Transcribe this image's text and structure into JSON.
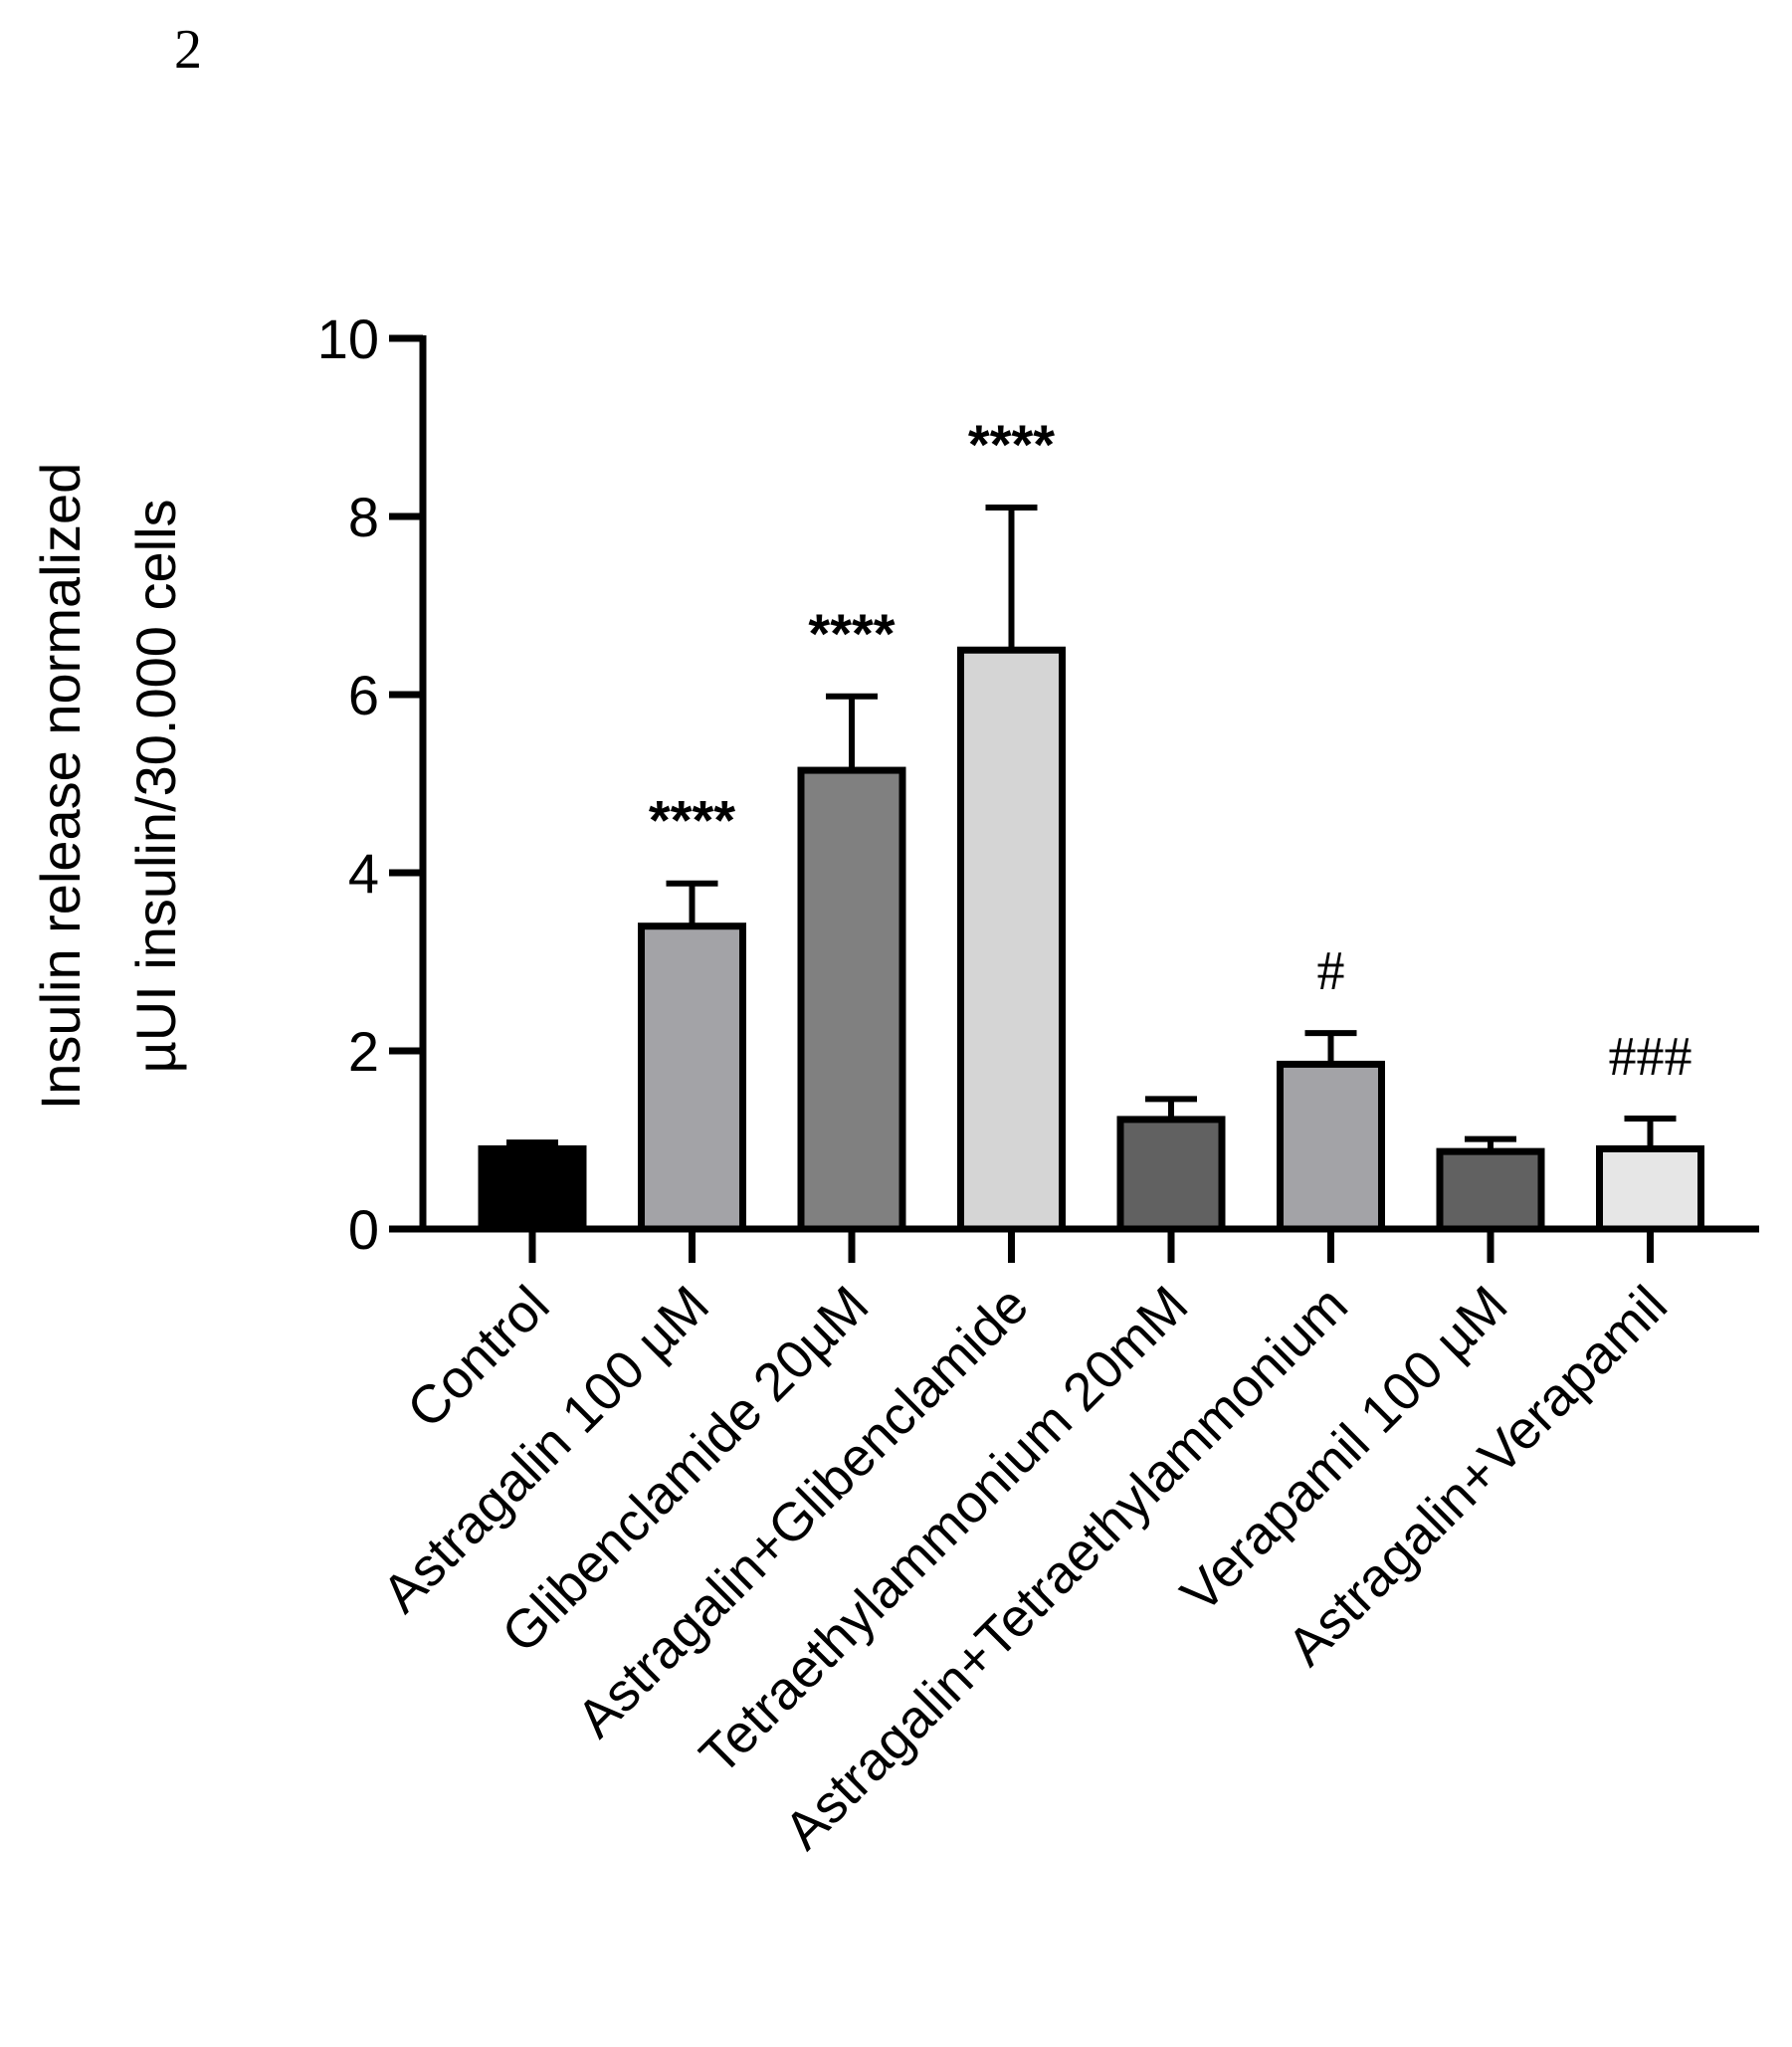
{
  "panel_label": "2",
  "chart_data": {
    "type": "bar",
    "ylabel_line1": "Insulin release normalized",
    "ylabel_line2": "µUI insulin/30.000 cells",
    "ylim": [
      0,
      10
    ],
    "yticks": [
      0,
      2,
      4,
      6,
      8,
      10
    ],
    "grid": false,
    "categories": [
      "Control",
      "Astragalin 100 µM",
      "Glibenclamide 20µM",
      "Astragalin+Glibenclamide",
      "Tetraethylammonium 20mM",
      "Astragalin+Tetraethylammonium",
      "Verapamil 100 µM",
      "Astragalin+Verapamil"
    ],
    "values": [
      0.9,
      3.4,
      5.15,
      6.5,
      1.23,
      1.85,
      0.87,
      0.9
    ],
    "errors": [
      0.07,
      0.48,
      0.83,
      1.6,
      0.23,
      0.35,
      0.14,
      0.34
    ],
    "annotations": [
      "",
      "****",
      "****",
      "****",
      "",
      "#",
      "",
      "###"
    ],
    "colors": [
      "#000000",
      "#a3a3a7",
      "#808080",
      "#d5d5d5",
      "#616161",
      "#a3a3a7",
      "#616161",
      "#e6e6e6"
    ]
  }
}
